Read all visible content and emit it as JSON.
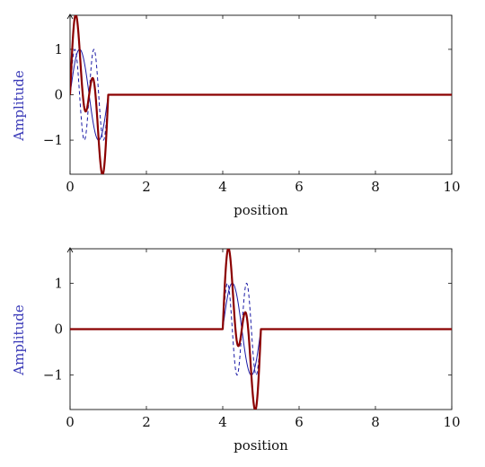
{
  "chart_data": [
    {
      "type": "line",
      "title": "",
      "xlabel": "position",
      "ylabel": "Amplitude",
      "xlim": [
        0,
        10
      ],
      "ylim": [
        -1.75,
        1.75
      ],
      "grid": false,
      "x_ticks": [
        0,
        2,
        4,
        6,
        8,
        10
      ],
      "y_ticks": [
        -1,
        0,
        1
      ],
      "x_tick_labels": [
        "0",
        "2",
        "4",
        "6",
        "8",
        "10"
      ],
      "y_tick_labels": [
        "−1",
        "0",
        "1"
      ],
      "pulse_start": 0,
      "pulse_end": 1,
      "series": [
        {
          "color": "#1a1aa6",
          "style": "solid",
          "width": 1,
          "frequency": 1,
          "amplitude": 1
        },
        {
          "color": "#1a1aa6",
          "style": "dashed",
          "width": 1,
          "frequency": 2,
          "amplitude": 1
        },
        {
          "color": "#8b0000",
          "style": "solid",
          "width": 2.2,
          "frequency": "sum",
          "amplitude": 1
        }
      ]
    },
    {
      "type": "line",
      "title": "",
      "xlabel": "position",
      "ylabel": "Amplitude",
      "xlim": [
        0,
        10
      ],
      "ylim": [
        -1.75,
        1.75
      ],
      "grid": false,
      "x_ticks": [
        0,
        2,
        4,
        6,
        8,
        10
      ],
      "y_ticks": [
        -1,
        0,
        1
      ],
      "x_tick_labels": [
        "0",
        "2",
        "4",
        "6",
        "8",
        "10"
      ],
      "y_tick_labels": [
        "−1",
        "0",
        "1"
      ],
      "pulse_start": 4,
      "pulse_end": 5,
      "series": [
        {
          "color": "#1a1aa6",
          "style": "solid",
          "width": 1,
          "frequency": 1,
          "amplitude": 1
        },
        {
          "color": "#1a1aa6",
          "style": "dashed",
          "width": 1,
          "frequency": 2,
          "amplitude": 1
        },
        {
          "color": "#8b0000",
          "style": "solid",
          "width": 2.2,
          "frequency": "sum",
          "amplitude": 1
        }
      ]
    }
  ]
}
